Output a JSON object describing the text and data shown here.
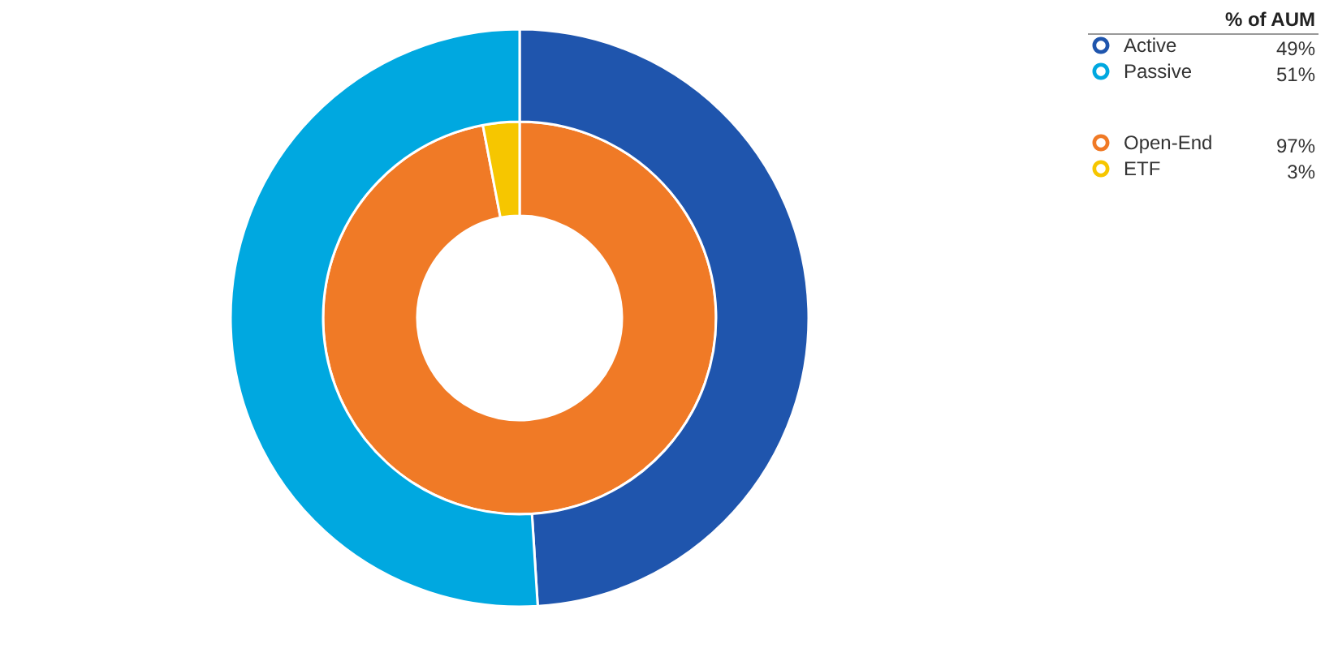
{
  "chart_data": {
    "type": "donut",
    "legend_title": "% of AUM",
    "legend": "top right",
    "categories": [
      "Active",
      "Passive",
      "Open-End",
      "ETF"
    ],
    "colors": [
      "#1f55ad",
      "#00a8e0",
      "#f07a26",
      "#f6c600"
    ],
    "value_labels": [
      "49%",
      "51%",
      "97%",
      "3%"
    ],
    "series": [
      {
        "values": [
          null,
          null,
          97,
          3
        ]
      },
      {
        "values": [
          49,
          51,
          null,
          null
        ]
      }
    ]
  }
}
